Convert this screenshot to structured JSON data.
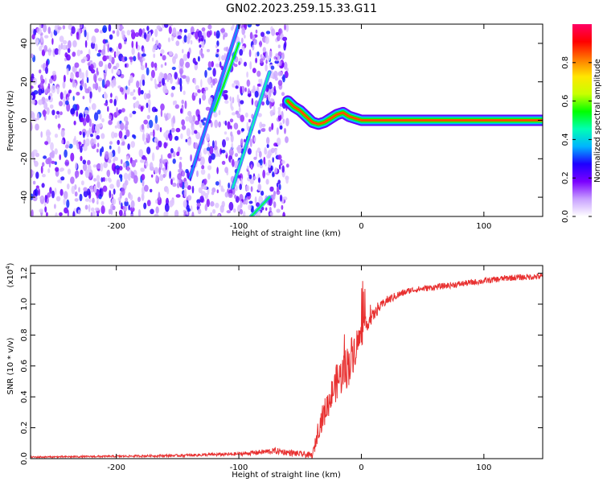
{
  "title": "GN02.2023.259.15.33.G11",
  "chart_data": [
    {
      "type": "heatmap",
      "xlabel": "Height of straight line (km)",
      "ylabel": "Frequency (Hz)",
      "xlim": [
        -270,
        148
      ],
      "ylim": [
        -50,
        50
      ],
      "xticks": [
        -200,
        -100,
        0,
        100
      ],
      "xtick_labels": [
        "-200",
        "-100",
        "0",
        "100"
      ],
      "yticks": [
        -40,
        -20,
        0,
        20,
        40
      ],
      "ytick_labels": [
        "-40",
        "-20",
        "0",
        "20",
        "40"
      ],
      "colorbar": {
        "label": "Normalized spectral amplitude",
        "range": [
          0.0,
          1.0
        ],
        "ticks": [
          0.0,
          0.2,
          0.4,
          0.6,
          0.8
        ],
        "tick_labels": [
          "0.0",
          "0.2",
          "0.4",
          "0.6",
          "0.8"
        ],
        "colormap": [
          "#ffffff",
          "#c8a0ff",
          "#7b00ff",
          "#1e00ff",
          "#00b4ff",
          "#00ffb4",
          "#00ff00",
          "#c8ff00",
          "#ffe600",
          "#ff7800",
          "#ff0000",
          "#ff0064"
        ]
      },
      "noise_region": {
        "x": [
          -270,
          -60
        ]
      },
      "streaks": [
        {
          "from": [
            -140,
            -30
          ],
          "to": [
            -100,
            50
          ],
          "amplitude": 0.35
        },
        {
          "from": [
            -105,
            -35
          ],
          "to": [
            -75,
            25
          ],
          "amplitude": 0.45
        },
        {
          "from": [
            -90,
            -50
          ],
          "to": [
            -75,
            -40
          ],
          "amplitude": 0.5
        },
        {
          "from": [
            -120,
            5
          ],
          "to": [
            -100,
            40
          ],
          "amplitude": 0.55
        }
      ],
      "ridge": {
        "x": [
          -60,
          -55,
          -50,
          -45,
          -40,
          -35,
          -30,
          -25,
          -20,
          -15,
          -10,
          -5,
          0,
          50,
          100,
          148
        ],
        "freq": [
          10,
          7,
          5,
          2,
          -1,
          -2,
          -1,
          1,
          3,
          4,
          2,
          1,
          0,
          0,
          0,
          0
        ]
      }
    },
    {
      "type": "line",
      "xlabel": "Height of straight line (km)",
      "ylabel": "SNR (10 * v/v)",
      "y_multiplier": "(x10",
      "y_multiplier_exp": "4",
      "y_multiplier_close": ")",
      "xlim": [
        -270,
        148
      ],
      "ylim": [
        0,
        1.25
      ],
      "xticks": [
        -200,
        -100,
        0,
        100
      ],
      "xtick_labels": [
        "-200",
        "-100",
        "0",
        "100"
      ],
      "yticks": [
        0.0,
        0.2,
        0.4,
        0.6,
        0.8,
        1.0,
        1.2
      ],
      "ytick_labels": [
        "0.0",
        "0.2",
        "0.4",
        "0.6",
        "0.8",
        "1.0",
        "1.2"
      ],
      "line_color": "#e83030",
      "x": [
        -270,
        -200,
        -150,
        -100,
        -70,
        -50,
        -40,
        -38,
        -35,
        -30,
        -25,
        -20,
        -15,
        -10,
        -5,
        0,
        5,
        10,
        15,
        20,
        30,
        40,
        50,
        70,
        100,
        120,
        148
      ],
      "y": [
        0.01,
        0.015,
        0.02,
        0.03,
        0.05,
        0.03,
        0.02,
        0.08,
        0.2,
        0.3,
        0.4,
        0.5,
        0.55,
        0.62,
        0.72,
        0.8,
        0.88,
        0.93,
        0.98,
        1.02,
        1.06,
        1.09,
        1.1,
        1.12,
        1.15,
        1.17,
        1.18
      ],
      "noise": [
        0.005,
        0.006,
        0.008,
        0.012,
        0.02,
        0.02,
        0.02,
        0.04,
        0.07,
        0.09,
        0.1,
        0.12,
        0.13,
        0.15,
        0.12,
        0.08,
        0.05,
        0.04,
        0.03,
        0.03,
        0.025,
        0.02,
        0.02,
        0.02,
        0.02,
        0.02,
        0.02
      ]
    }
  ]
}
